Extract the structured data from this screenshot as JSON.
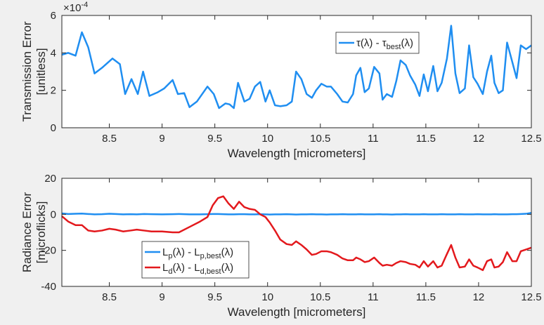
{
  "chart_data": [
    {
      "type": "line",
      "ylabel": [
        "Transmission Error",
        "[unitless]"
      ],
      "xlabel": "Wavelength [micrometers]",
      "y_multiplier": {
        "base": "×10",
        "exponent": "-4"
      },
      "xlim": [
        8.05,
        12.5
      ],
      "xticks": [
        8.5,
        9,
        9.5,
        10,
        10.5,
        11,
        11.5,
        12,
        12.5
      ],
      "ylim": [
        0,
        6
      ],
      "yticks": [
        0,
        2,
        4,
        6
      ],
      "legend": "northeast",
      "x": [
        8.05,
        8.11,
        8.18,
        8.24,
        8.3,
        8.36,
        8.43,
        8.53,
        8.6,
        8.65,
        8.71,
        8.77,
        8.82,
        8.88,
        8.96,
        9.02,
        9.1,
        9.15,
        9.21,
        9.26,
        9.33,
        9.43,
        9.49,
        9.54,
        9.6,
        9.64,
        9.68,
        9.72,
        9.78,
        9.83,
        9.88,
        9.93,
        9.98,
        10.02,
        10.07,
        10.12,
        10.18,
        10.23,
        10.27,
        10.32,
        10.37,
        10.42,
        10.46,
        10.51,
        10.56,
        10.6,
        10.66,
        10.71,
        10.76,
        10.81,
        10.84,
        10.88,
        10.92,
        10.96,
        11.01,
        11.06,
        11.09,
        11.13,
        11.18,
        11.22,
        11.26,
        11.31,
        11.35,
        11.4,
        11.44,
        11.48,
        11.52,
        11.57,
        11.61,
        11.65,
        11.7,
        11.74,
        11.78,
        11.82,
        11.87,
        11.91,
        11.95,
        11.99,
        12.04,
        12.08,
        12.12,
        12.15,
        12.19,
        12.23,
        12.27,
        12.32,
        12.36,
        12.4,
        12.45,
        12.5
      ],
      "series": [
        {
          "name": [
            "τ(λ) - τ",
            "best",
            "(λ)"
          ],
          "color": "#1f8ef1",
          "values": [
            3.9,
            4.0,
            3.85,
            5.1,
            4.3,
            2.9,
            3.2,
            3.7,
            3.4,
            1.8,
            2.6,
            1.8,
            3.0,
            1.7,
            1.9,
            2.1,
            2.55,
            1.8,
            1.85,
            1.1,
            1.4,
            2.2,
            1.8,
            1.05,
            1.3,
            1.25,
            1.05,
            2.4,
            1.4,
            1.55,
            2.2,
            2.45,
            1.4,
            2.0,
            1.2,
            1.15,
            1.2,
            1.4,
            3.0,
            2.6,
            1.8,
            1.6,
            2.0,
            2.35,
            2.2,
            2.2,
            1.8,
            1.4,
            1.35,
            1.8,
            2.8,
            3.2,
            1.9,
            2.1,
            3.25,
            2.9,
            1.5,
            1.8,
            1.65,
            2.5,
            3.6,
            3.35,
            2.8,
            2.3,
            1.7,
            2.85,
            1.95,
            3.3,
            1.95,
            2.4,
            3.7,
            5.45,
            2.9,
            1.85,
            2.1,
            4.4,
            2.7,
            2.35,
            1.8,
            3.0,
            3.85,
            2.4,
            1.85,
            2.0,
            4.55,
            3.5,
            2.65,
            4.4,
            4.2,
            4.4
          ]
        }
      ]
    },
    {
      "type": "line",
      "ylabel": [
        "Radiance Error",
        "[microflicks]"
      ],
      "xlabel": "Wavelength [micrometers]",
      "xlim": [
        8.05,
        12.5
      ],
      "xticks": [
        8.5,
        9,
        9.5,
        10,
        10.5,
        11,
        11.5,
        12,
        12.5
      ],
      "ylim": [
        -40,
        20
      ],
      "yticks": [
        -40,
        -20,
        0,
        20
      ],
      "legend": "southwest",
      "x": [
        8.05,
        8.11,
        8.18,
        8.24,
        8.3,
        8.36,
        8.43,
        8.5,
        8.56,
        8.63,
        8.7,
        8.76,
        8.83,
        8.9,
        9.0,
        9.1,
        9.16,
        9.26,
        9.36,
        9.43,
        9.48,
        9.53,
        9.58,
        9.63,
        9.68,
        9.73,
        9.78,
        9.83,
        9.88,
        9.93,
        9.98,
        10.02,
        10.07,
        10.12,
        10.18,
        10.23,
        10.27,
        10.32,
        10.37,
        10.42,
        10.46,
        10.51,
        10.56,
        10.6,
        10.66,
        10.71,
        10.76,
        10.81,
        10.84,
        10.88,
        10.92,
        10.96,
        11.01,
        11.06,
        11.09,
        11.13,
        11.18,
        11.22,
        11.26,
        11.31,
        11.35,
        11.4,
        11.44,
        11.48,
        11.52,
        11.57,
        11.61,
        11.65,
        11.7,
        11.74,
        11.78,
        11.82,
        11.87,
        11.91,
        11.95,
        11.99,
        12.04,
        12.08,
        12.12,
        12.15,
        12.19,
        12.23,
        12.27,
        12.32,
        12.36,
        12.4,
        12.45,
        12.5
      ],
      "series": [
        {
          "name": [
            "L",
            "p",
            "(λ) - L",
            "p,best",
            "(λ)"
          ],
          "color": "#1f8ef1",
          "values": [
            0.5,
            0.2,
            0.3,
            0.4,
            0.2,
            0,
            0.1,
            0.3,
            0.2,
            0,
            0.1,
            0,
            0.2,
            0.1,
            0,
            0.1,
            0.2,
            0,
            0,
            0.1,
            0.2,
            0.2,
            0.1,
            0,
            0,
            0.1,
            0.1,
            0,
            0,
            0.1,
            0,
            -0.1,
            0,
            0,
            0.1,
            0,
            -0.1,
            0,
            0,
            0.1,
            0,
            0,
            -0.1,
            0,
            0,
            0.1,
            0,
            0,
            0,
            0.1,
            0,
            0,
            0,
            0.1,
            0,
            0,
            -0.1,
            0,
            0,
            0.1,
            0,
            0,
            0,
            0.1,
            0,
            0,
            0,
            0.1,
            0,
            0,
            0,
            0.1,
            0,
            0,
            0,
            0.1,
            0,
            0,
            0,
            0.1,
            0,
            0,
            0,
            0.1,
            0.1,
            0.2,
            0.3,
            0.8
          ]
        },
        {
          "name": [
            "L",
            "d",
            "(λ) - L",
            "d,best",
            "(λ)"
          ],
          "color": "#e3191d",
          "values": [
            -1,
            -4,
            -6,
            -6,
            -9,
            -9.5,
            -9,
            -8,
            -8.5,
            -9.5,
            -9,
            -8.5,
            -9,
            -9.5,
            -9.5,
            -10,
            -10,
            -7,
            -4,
            -1.5,
            5,
            9,
            10,
            6,
            3,
            7,
            4,
            3,
            2.5,
            0,
            -1.5,
            -4.5,
            -9,
            -14,
            -16.5,
            -17,
            -15,
            -17,
            -19.5,
            -22.5,
            -22,
            -20.5,
            -20.5,
            -21,
            -22.5,
            -24.5,
            -25.5,
            -25.5,
            -24,
            -25,
            -26.5,
            -26,
            -24,
            -27,
            -28.5,
            -28,
            -28.5,
            -27,
            -26,
            -26.5,
            -27.5,
            -28,
            -29.5,
            -26,
            -29,
            -26,
            -29.5,
            -28.5,
            -22,
            -17,
            -24,
            -29.5,
            -29,
            -25,
            -28.5,
            -29.5,
            -31,
            -26,
            -25,
            -29.5,
            -29,
            -26.5,
            -21,
            -26,
            -26,
            -20.5,
            -19.5,
            -18.5
          ]
        }
      ]
    }
  ]
}
